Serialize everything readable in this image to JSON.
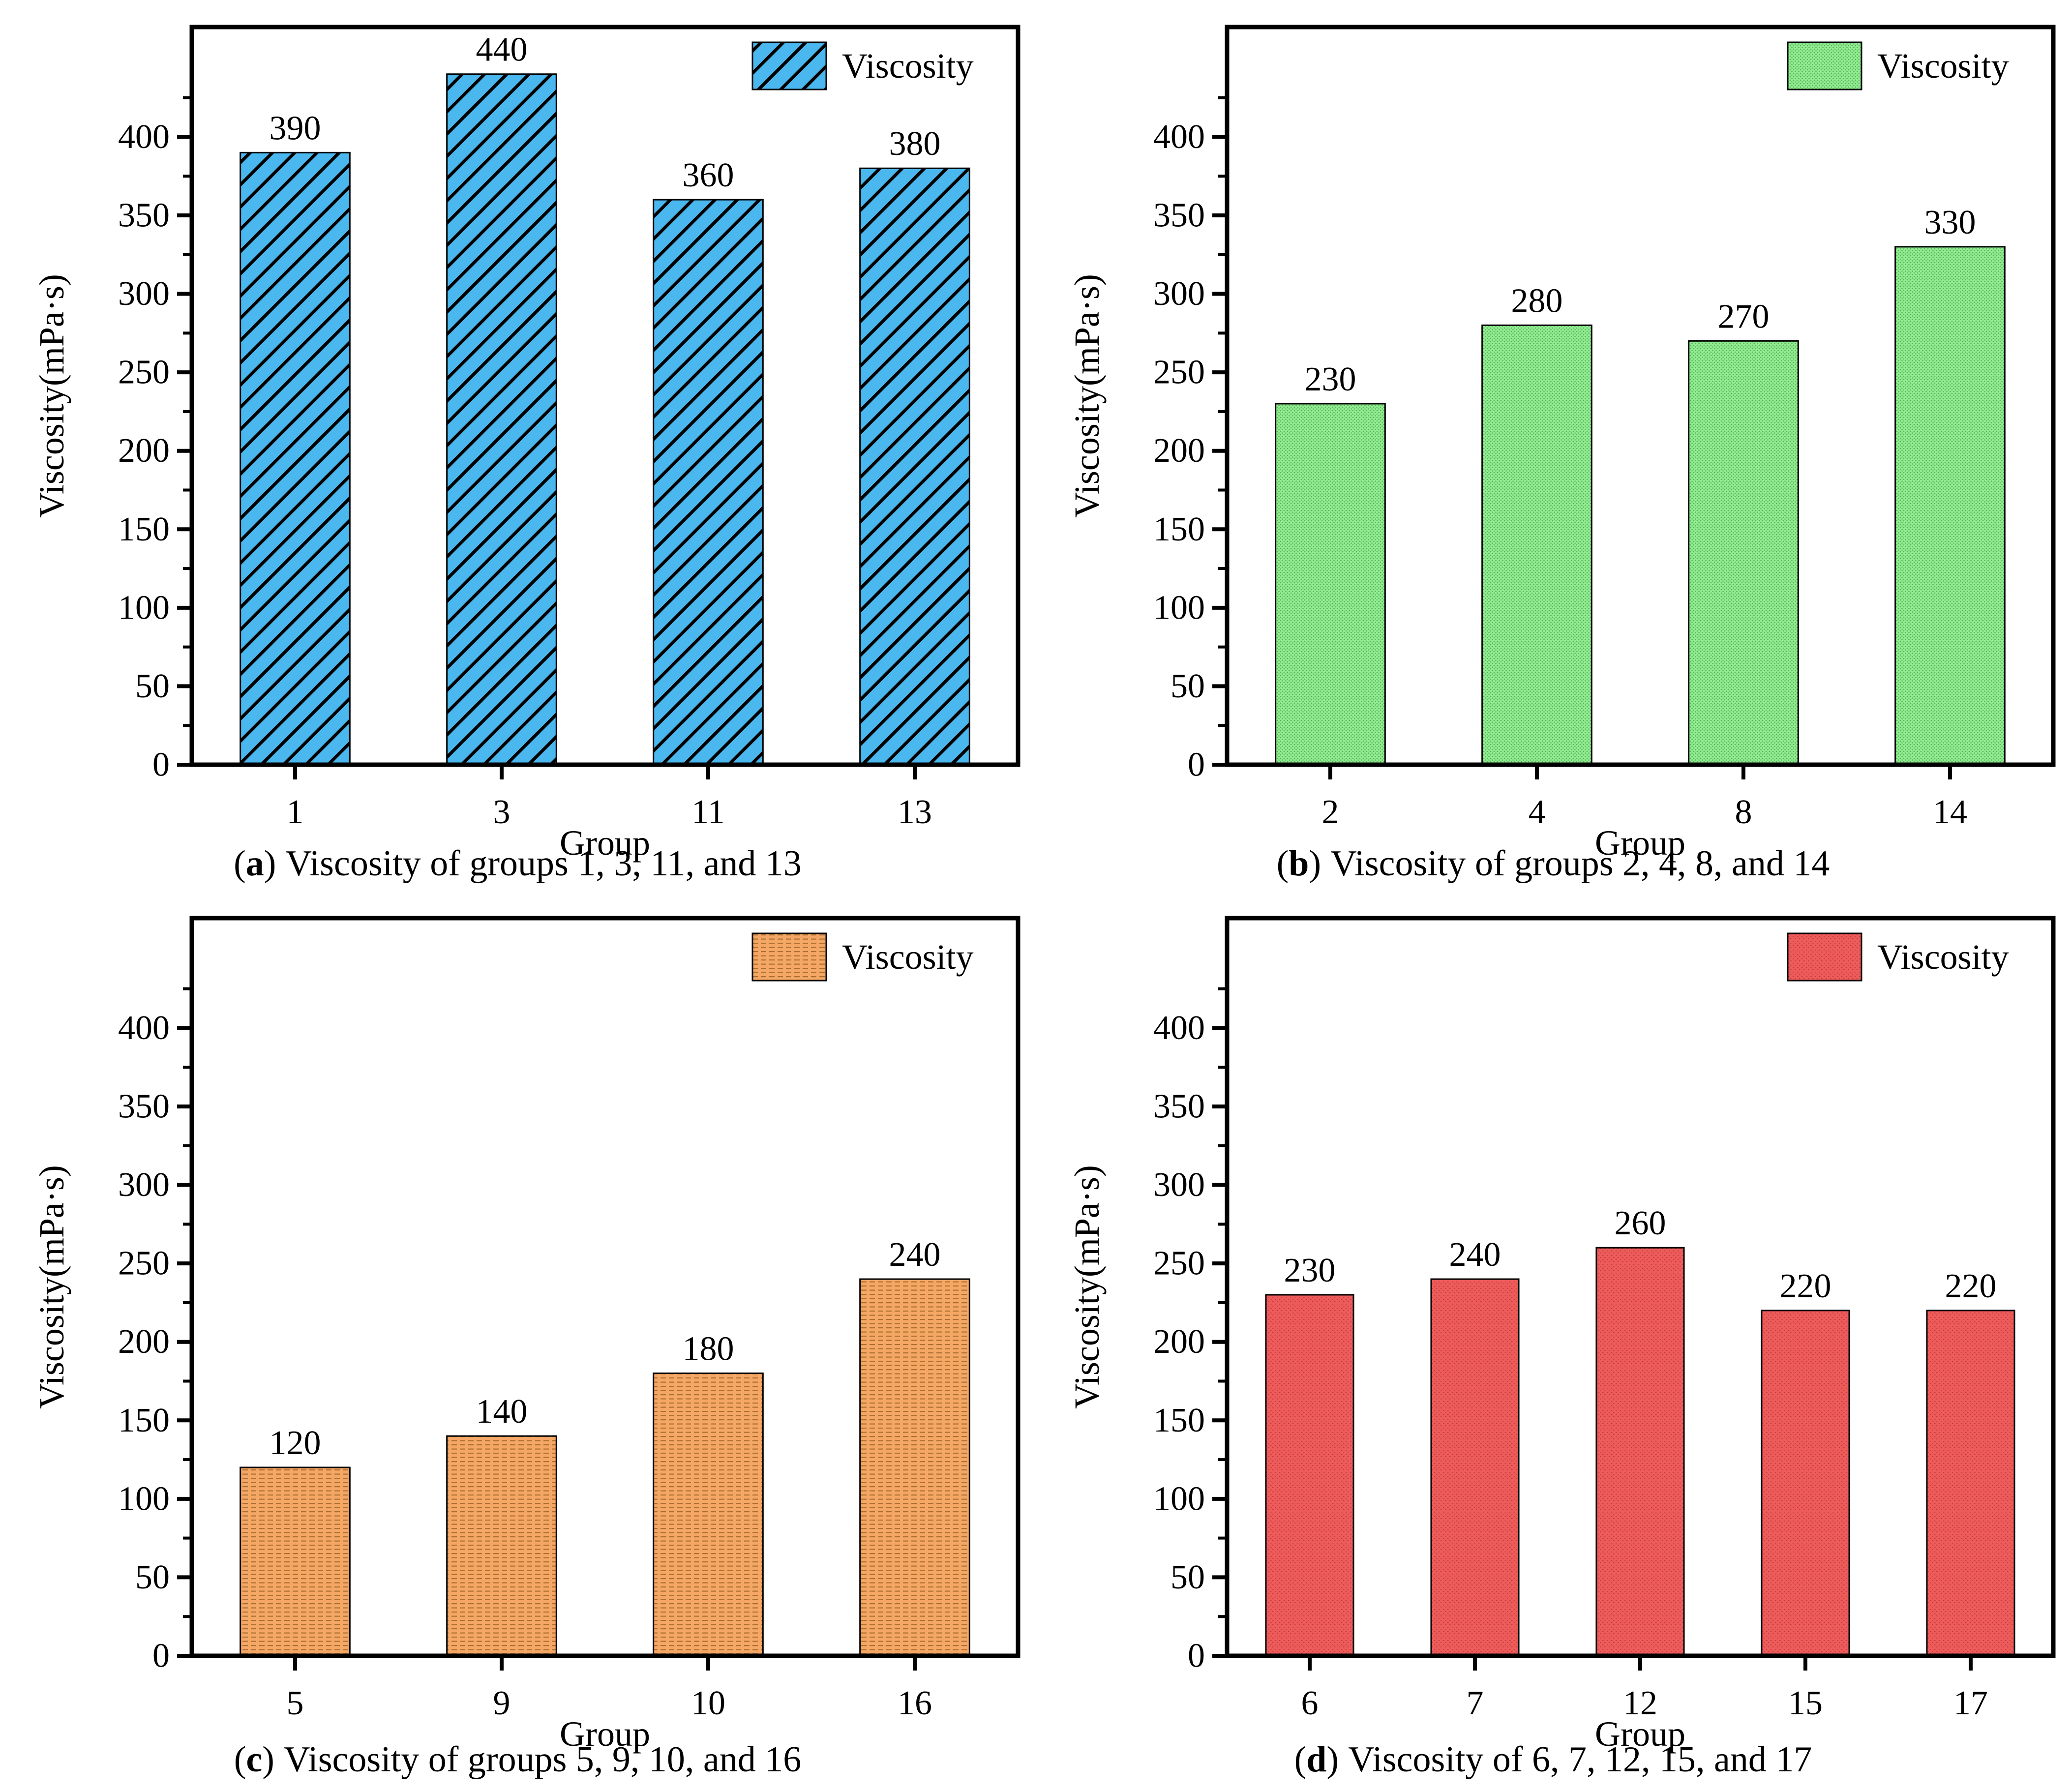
{
  "chart_data": [
    {
      "type": "bar",
      "panel": "a",
      "categories": [
        "1",
        "3",
        "11",
        "13"
      ],
      "values": [
        390,
        440,
        360,
        380
      ],
      "xlabel": "Group",
      "ylabel": "Viscosity(mPa·s)",
      "ylim": [
        0,
        470
      ],
      "ytick_step": 50,
      "yminor_step": 25,
      "grid": false,
      "legend": "Viscosity",
      "legend_position": "upper right",
      "bar_color": "#4BB7EF",
      "hatch": "diagonal",
      "hatch_color": "#000000"
    },
    {
      "type": "bar",
      "panel": "b",
      "categories": [
        "2",
        "4",
        "8",
        "14"
      ],
      "values": [
        230,
        280,
        270,
        330
      ],
      "xlabel": "Group",
      "ylabel": "Viscosity(mPa·s)",
      "ylim": [
        0,
        470
      ],
      "ytick_step": 50,
      "yminor_step": 25,
      "grid": false,
      "legend": "Viscosity",
      "legend_position": "upper right",
      "bar_color": "#90EE90",
      "hatch": "dots",
      "hatch_color": "#2F7A2F"
    },
    {
      "type": "bar",
      "panel": "c",
      "categories": [
        "5",
        "9",
        "10",
        "16"
      ],
      "values": [
        120,
        140,
        180,
        240
      ],
      "xlabel": "Group",
      "ylabel": "Viscosity(mPa·s)",
      "ylim": [
        0,
        470
      ],
      "ytick_step": 50,
      "yminor_step": 25,
      "grid": false,
      "legend": "Viscosity",
      "legend_position": "upper right",
      "bar_color": "#F5A765",
      "hatch": "horizontal-dash",
      "hatch_color": "#7A4A10"
    },
    {
      "type": "bar",
      "panel": "d",
      "categories": [
        "6",
        "7",
        "12",
        "15",
        "17"
      ],
      "values": [
        230,
        240,
        260,
        220,
        220
      ],
      "xlabel": "Group",
      "ylabel": "Viscosity(mPa·s)",
      "ylim": [
        0,
        470
      ],
      "ytick_step": 50,
      "yminor_step": 25,
      "grid": false,
      "legend": "Viscosity",
      "legend_position": "upper right",
      "bar_color": "#EE5B5B",
      "hatch": "speckle",
      "hatch_color": "#8B1A1A"
    }
  ],
  "captions": [
    {
      "open": "(",
      "letter": "a",
      "close": ")",
      "text": "Viscosity of groups 1, 3, 11, and 13"
    },
    {
      "open": "(",
      "letter": "b",
      "close": ")",
      "text": "Viscosity of groups 2, 4, 8, and 14"
    },
    {
      "open": "(",
      "letter": "c",
      "close": ")",
      "text": "Viscosity of groups 5, 9, 10, and 16"
    },
    {
      "open": "(",
      "letter": "d",
      "close": ")",
      "text": "Viscosity of 6, 7, 12, 15, and 17"
    }
  ]
}
